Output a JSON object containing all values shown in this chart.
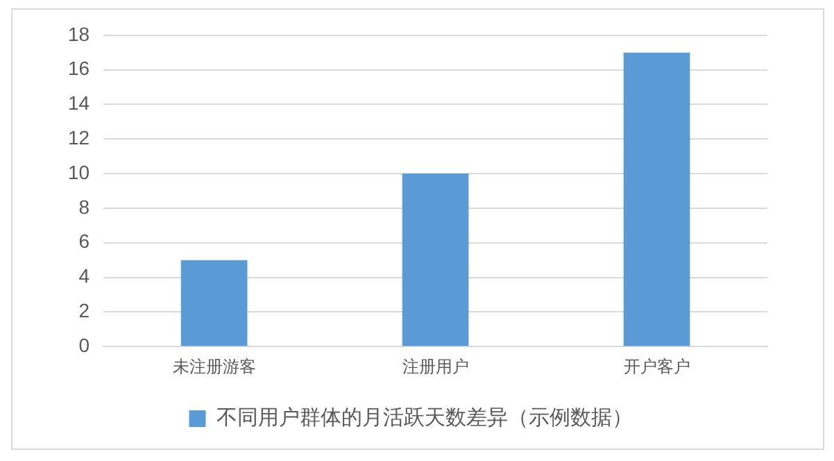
{
  "chart_data": {
    "type": "bar",
    "categories": [
      "未注册游客",
      "注册用户",
      "开户客户"
    ],
    "series": [
      {
        "name": "不同用户群体的月活跃天数差异（示例数据）",
        "color": "#5b9bd5",
        "values": [
          5,
          10,
          17
        ]
      }
    ],
    "ylim": [
      0,
      18
    ],
    "yticks": [
      0,
      2,
      4,
      6,
      8,
      10,
      12,
      14,
      16,
      18
    ],
    "grid": "y",
    "legend": "bottom"
  }
}
